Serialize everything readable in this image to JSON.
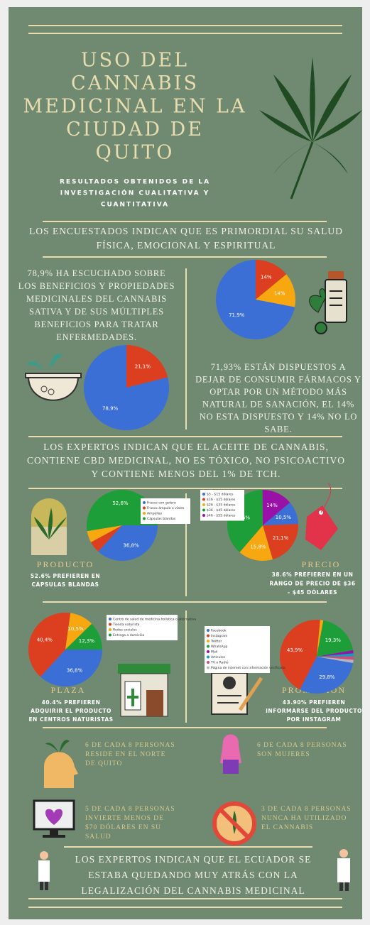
{
  "header": {
    "title": [
      "USO DEL",
      "CANNABIS",
      "MEDICINAL EN LA",
      "CIUDAD DE",
      "QUITO"
    ],
    "subtitle": [
      "RESULTADOS OBTENIDOS DE LA",
      "INVESTIGACIÓN CUALITATIVA Y",
      "CUANTITATIVA"
    ]
  },
  "intro": [
    "LOS ENCUESTADOS INDICAN QUE ES PRIMORDIAL SU SALUD",
    "FÍSICA, EMOCIONAL Y ESPIRITUAL"
  ],
  "awareness": {
    "text": [
      "78,9% HA ESCUCHADO SOBRE",
      "LOS BENEFICIOS Y PROPIEDADES",
      "MEDICINALES DEL CANNABIS",
      "SATIVA Y DE SUS MÚLTIPLES",
      "BENEFICIOS PARA TRATAR",
      "ENFERMEDADES."
    ],
    "chart": {
      "type": "pie",
      "values": [
        21.1,
        78.9
      ],
      "value_labels": [
        "21,1%",
        "78,9%"
      ],
      "colors": [
        "#db3f1f",
        "#3b6fd6"
      ]
    }
  },
  "willingness": {
    "text": [
      "71,93% ESTÁN DISPUESTOS A",
      "DEJAR DE CONSUMIR FÁRMACOS Y",
      "OPTAR POR UN MÉTODO MÁS",
      "NATURAL DE SANACIÓN, EL 14%",
      "NO ESTA DISPUESTO Y 14% NO LO",
      "SABE."
    ],
    "chart": {
      "type": "pie",
      "values": [
        14,
        14,
        71.9
      ],
      "value_labels": [
        "14%",
        "14%",
        "71,9%"
      ],
      "colors": [
        "#db3f1f",
        "#f7a70f",
        "#3b6fd6"
      ]
    }
  },
  "experts": [
    "LOS EXPERTOS INDICAN QUE EL ACEITE DE CANNABIS,",
    "CONTIENE CBD MEDICINAL, NO ES TÓXICO, NO PSICOACTIVO",
    "Y CONTIENE MENOS DEL 1% DE TCH."
  ],
  "producto": {
    "heading": "PRODUCTO",
    "text": [
      "52.6% PREFIEREN EN",
      "CÁPSULAS BLANDAS"
    ],
    "chart": {
      "type": "pie",
      "categories": [
        "Frasco con gotero",
        "Frasco ámpula o viales",
        "Ampollas",
        "Cápsulas blandas"
      ],
      "values": [
        36.8,
        5.3,
        5.3,
        52.6
      ],
      "value_labels": [
        "36,8%",
        null,
        null,
        "52,6%"
      ],
      "colors": [
        "#3b6fd6",
        "#db3f1f",
        "#f7a70f",
        "#1e9e38"
      ]
    }
  },
  "precio": {
    "heading": "PRECIO",
    "text": [
      "38.6% PREFIEREN EN UN",
      "RANGO DE PRECIO DE $36",
      "- $45 DÓLARES"
    ],
    "chart": {
      "type": "pie",
      "categories": [
        "$5 - $15 dólares",
        "$16 - $25 dólares",
        "$26 - $35 dólares",
        "$36 - $45 dólares",
        "$46 - $55 dólares"
      ],
      "values": [
        10.5,
        21.1,
        15.8,
        38.6,
        14
      ],
      "value_labels": [
        "10,5%",
        "21,1%",
        "15,8%",
        "38,6%",
        "14%"
      ],
      "colors": [
        "#3b6fd6",
        "#db3f1f",
        "#f7a70f",
        "#1e9e38",
        "#9911a6"
      ]
    }
  },
  "plaza": {
    "heading": "PLAZA",
    "text": [
      "40.4% PREFIEREN",
      "ADQUIRIR EL PRODUCTO",
      "EN CENTROS NATURISTAS"
    ],
    "chart": {
      "type": "pie",
      "categories": [
        "Centro de salud de medicina holística o alternativa",
        "Tienda naturista",
        "Redes sociales",
        "Entrega a domicilio"
      ],
      "values": [
        36.8,
        40.4,
        10.5,
        12.3
      ],
      "value_labels": [
        "36,8%",
        "40,4%",
        "10,5%",
        "12,3%"
      ],
      "colors": [
        "#3b6fd6",
        "#db3f1f",
        "#f7a70f",
        "#1e9e38"
      ]
    }
  },
  "promocion": {
    "heading": "PROMOCIÓN",
    "text": [
      "43.90% PREFIEREN",
      "INFORMARSE DEL PRODUCTO",
      "POR INSTAGRAM"
    ],
    "chart": {
      "type": "pie",
      "categories": [
        "Facebook",
        "Instagram",
        "Twitter",
        "WhatsApp",
        "Mail",
        "Artículos",
        "TV o Radio",
        "Página de internet con información verificada"
      ],
      "values": [
        29.8,
        43.9,
        1.4,
        19.3,
        1.4,
        1.4,
        1.4,
        1.4
      ],
      "value_labels": [
        "29,8%",
        "43,9%",
        null,
        "19,3%",
        null,
        null,
        null,
        null
      ],
      "colors": [
        "#3b6fd6",
        "#db3f1f",
        "#f7a70f",
        "#1e9e38",
        "#9911a6",
        "#0f9fc0",
        "#dd4477",
        "#b0b7c2"
      ]
    }
  },
  "stats": [
    [
      "6 DE CADA 8 PERSONAS",
      "RESIDE EN EL NORTE",
      "DE QUITO"
    ],
    [
      "6 DE CADA 8 PERSONAS",
      "SON MUJERES"
    ],
    [
      "5 DE CADA 8 PERSONAS",
      "INVIERTE MENOS DE",
      "$70 DÓLARES EN SU",
      "SALUD"
    ],
    [
      "3 DE CADA 8 PERSONAS",
      "NUNCA HA UTILIZADO",
      "EL CANNABIS"
    ]
  ],
  "closing": [
    "LOS EXPERTOS INDICAN QUE EL ECUADOR SE",
    "ESTABA QUEDANDO MUY ATRÁS CON LA",
    "LEGALIZACIÓN DEL CANNABIS MEDICINAL"
  ]
}
